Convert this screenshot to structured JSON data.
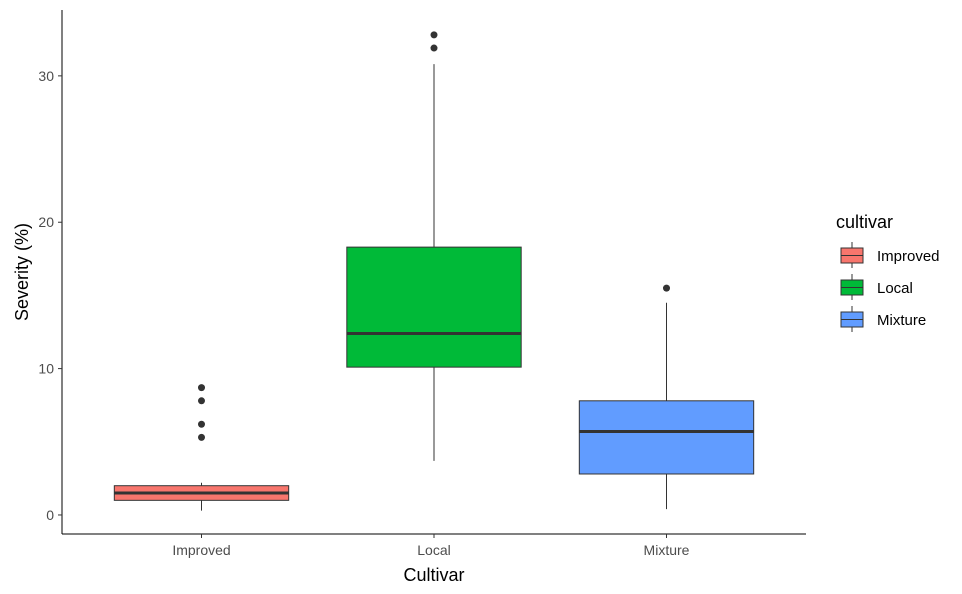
{
  "chart_data": {
    "type": "boxplot",
    "title": "",
    "xlabel": "Cultivar",
    "ylabel": "Severity (%)",
    "ylim": [
      -1.3,
      34.5
    ],
    "yticks": [
      0,
      10,
      20,
      30
    ],
    "yticklabels": [
      "0",
      "10",
      "20",
      "30"
    ],
    "grid": false,
    "legend": {
      "title": "cultivar",
      "position": "right",
      "entries": [
        "Improved",
        "Local",
        "Mixture"
      ]
    },
    "categories": [
      "Improved",
      "Local",
      "Mixture"
    ],
    "boxes": [
      {
        "category": "Improved",
        "color": "#F8766D",
        "whisker_low": 0.3,
        "q1": 1.0,
        "median": 1.5,
        "q3": 2.0,
        "whisker_high": 2.2,
        "outliers": [
          5.3,
          6.2,
          7.8,
          8.7
        ]
      },
      {
        "category": "Local",
        "color": "#00BA38",
        "whisker_low": 3.7,
        "q1": 10.1,
        "median": 12.4,
        "q3": 18.3,
        "whisker_high": 30.8,
        "outliers": [
          31.9,
          32.8
        ]
      },
      {
        "category": "Mixture",
        "color": "#619CFF",
        "whisker_low": 0.4,
        "q1": 2.8,
        "median": 5.7,
        "q3": 7.8,
        "whisker_high": 14.5,
        "outliers": [
          15.5
        ]
      }
    ]
  }
}
